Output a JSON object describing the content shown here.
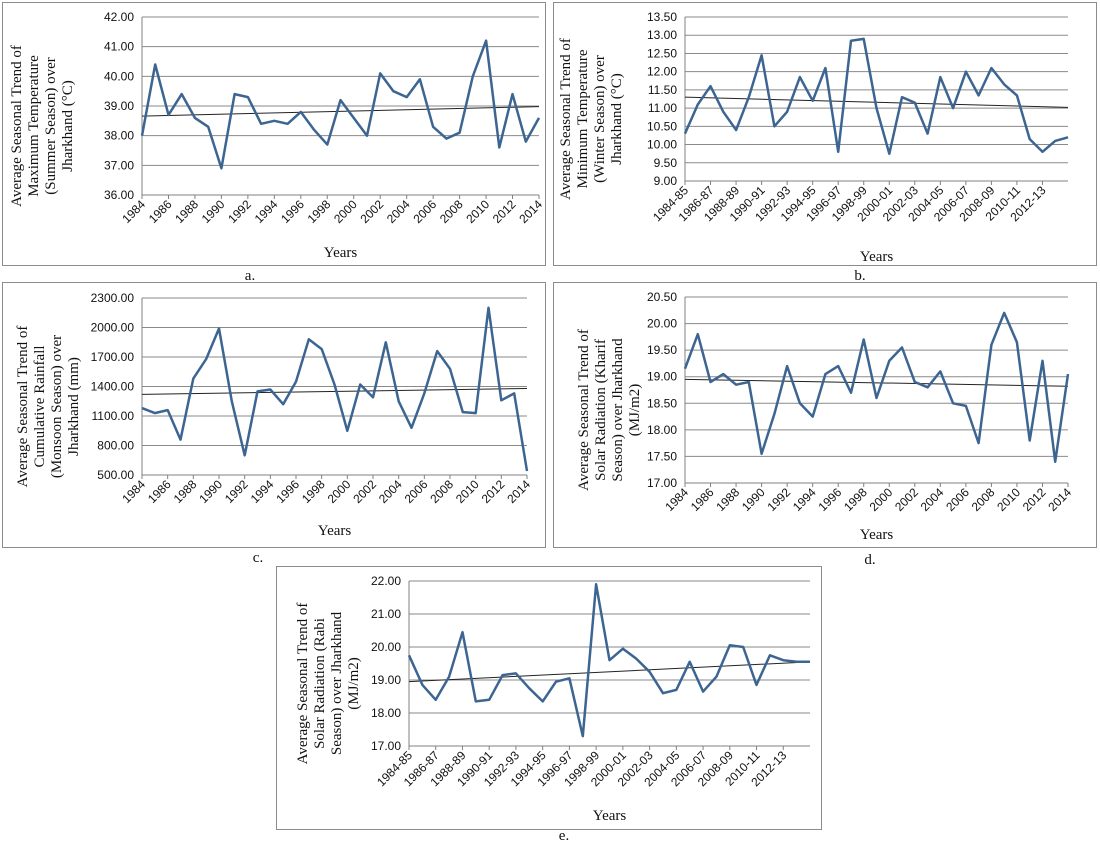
{
  "chart_data": [
    {
      "type": "line",
      "ylabel": [
        "Average Seasonal Trend of",
        "Maximum Temperature",
        "(Summer Season) over",
        "Jharkhand (°C)"
      ],
      "xlabel": "Years",
      "caption": "a.",
      "ylim": [
        36,
        42
      ],
      "yticks": [
        "36.00",
        "37.00",
        "38.00",
        "39.00",
        "40.00",
        "41.00",
        "42.00"
      ],
      "xtick_labels": [
        "1984",
        "1986",
        "1988",
        "1990",
        "1992",
        "1994",
        "1996",
        "1998",
        "2000",
        "2002",
        "2004",
        "2006",
        "2008",
        "2010",
        "2012",
        "2014"
      ],
      "x": [
        "1984",
        "1985",
        "1986",
        "1987",
        "1988",
        "1989",
        "1990",
        "1991",
        "1992",
        "1993",
        "1994",
        "1995",
        "1996",
        "1997",
        "1998",
        "1999",
        "2000",
        "2001",
        "2002",
        "2003",
        "2004",
        "2005",
        "2006",
        "2007",
        "2008",
        "2009",
        "2010",
        "2011",
        "2012",
        "2013",
        "2014"
      ],
      "values": [
        38.0,
        40.4,
        38.7,
        39.4,
        38.6,
        38.3,
        36.9,
        39.4,
        39.3,
        38.4,
        38.5,
        38.4,
        38.8,
        38.2,
        37.7,
        39.2,
        38.6,
        38.0,
        40.1,
        39.5,
        39.3,
        39.9,
        38.3,
        37.9,
        38.1,
        40.0,
        41.2,
        37.6,
        39.4,
        37.8,
        38.6
      ],
      "trend": [
        38.66,
        38.98
      ],
      "grid": true,
      "line_color": "#3c6592"
    },
    {
      "type": "line",
      "ylabel": [
        "Average Seasonal Trend of",
        "Minimum Temperature",
        "(Winter Season) over",
        "Jharkhand (°C)"
      ],
      "xlabel": "Years",
      "caption": "b.",
      "ylim": [
        9,
        13.5
      ],
      "yticks": [
        "9.00",
        "9.50",
        "10.00",
        "10.50",
        "11.00",
        "11.50",
        "12.00",
        "12.50",
        "13.00",
        "13.50"
      ],
      "xtick_labels": [
        "1984-85",
        "1986-87",
        "1988-89",
        "1990-91",
        "1992-93",
        "1994-95",
        "1996-97",
        "1998-99",
        "2000-01",
        "2002-03",
        "2004-05",
        "2006-07",
        "2008-09",
        "2010-11",
        "2012-13"
      ],
      "x": [
        "1984-85",
        "1985-86",
        "1986-87",
        "1987-88",
        "1988-89",
        "1989-90",
        "1990-91",
        "1991-92",
        "1992-93",
        "1993-94",
        "1994-95",
        "1995-96",
        "1996-97",
        "1997-98",
        "1998-99",
        "1999-00",
        "2000-01",
        "2001-02",
        "2002-03",
        "2003-04",
        "2004-05",
        "2005-06",
        "2006-07",
        "2007-08",
        "2008-09",
        "2009-10",
        "2010-11",
        "2011-12",
        "2012-13",
        "2013-14",
        "2014-15"
      ],
      "values": [
        10.3,
        11.1,
        11.6,
        10.9,
        10.4,
        11.3,
        12.45,
        10.5,
        10.9,
        11.85,
        11.2,
        12.1,
        9.8,
        12.85,
        12.9,
        11.0,
        9.75,
        11.3,
        11.15,
        10.3,
        11.85,
        11.0,
        12.0,
        11.35,
        12.1,
        11.65,
        11.35,
        10.15,
        9.8,
        10.1,
        10.2
      ],
      "trend": [
        11.3,
        11.02
      ],
      "grid": true,
      "line_color": "#3c6592"
    },
    {
      "type": "line",
      "ylabel": [
        "Average Seasonal Trend of",
        "Cumulative Rainfall",
        "(Monsoon Season) over",
        "Jharkhand (mm)"
      ],
      "xlabel": "Years",
      "caption": "c.",
      "ylim": [
        500,
        2300
      ],
      "yticks": [
        "500.00",
        "800.00",
        "1100.00",
        "1400.00",
        "1700.00",
        "2000.00",
        "2300.00"
      ],
      "xtick_labels": [
        "1984",
        "1986",
        "1988",
        "1990",
        "1992",
        "1994",
        "1996",
        "1998",
        "2000",
        "2002",
        "2004",
        "2006",
        "2008",
        "2010",
        "2012",
        "2014"
      ],
      "x": [
        "1984",
        "1985",
        "1986",
        "1987",
        "1988",
        "1989",
        "1990",
        "1991",
        "1992",
        "1993",
        "1994",
        "1995",
        "1996",
        "1997",
        "1998",
        "1999",
        "2000",
        "2001",
        "2002",
        "2003",
        "2004",
        "2005",
        "2006",
        "2007",
        "2008",
        "2009",
        "2010",
        "2011",
        "2012",
        "2013",
        "2014"
      ],
      "values": [
        1180,
        1130,
        1160,
        860,
        1480,
        1680,
        1990,
        1250,
        700,
        1350,
        1370,
        1220,
        1450,
        1880,
        1780,
        1420,
        950,
        1420,
        1290,
        1850,
        1250,
        980,
        1330,
        1760,
        1580,
        1140,
        1130,
        2200,
        1260,
        1330,
        540
      ],
      "trend": [
        1320,
        1380
      ],
      "grid": true,
      "line_color": "#3c6592"
    },
    {
      "type": "line",
      "ylabel": [
        "Average Seasonal Trend of",
        "Solar Radiation (Kharif",
        "Season) over Jharkhand",
        "(MJ/m2)"
      ],
      "xlabel": "Years",
      "caption": "d.",
      "ylim": [
        17,
        20.5
      ],
      "yticks": [
        "17.00",
        "17.50",
        "18.00",
        "18.50",
        "19.00",
        "19.50",
        "20.00",
        "20.50"
      ],
      "xtick_labels": [
        "1984",
        "1986",
        "1988",
        "1990",
        "1992",
        "1994",
        "1996",
        "1998",
        "2000",
        "2002",
        "2004",
        "2006",
        "2008",
        "2010",
        "2012",
        "2014"
      ],
      "x": [
        "1984",
        "1985",
        "1986",
        "1987",
        "1988",
        "1989",
        "1990",
        "1991",
        "1992",
        "1993",
        "1994",
        "1995",
        "1996",
        "1997",
        "1998",
        "1999",
        "2000",
        "2001",
        "2002",
        "2003",
        "2004",
        "2005",
        "2006",
        "2007",
        "2008",
        "2009",
        "2010",
        "2011",
        "2012",
        "2013",
        "2014"
      ],
      "values": [
        19.15,
        19.8,
        18.9,
        19.05,
        18.85,
        18.9,
        17.55,
        18.3,
        19.2,
        18.5,
        18.25,
        19.05,
        19.2,
        18.7,
        19.7,
        18.6,
        19.3,
        19.55,
        18.9,
        18.8,
        19.1,
        18.5,
        18.45,
        17.75,
        19.6,
        20.2,
        19.65,
        17.8,
        19.3,
        17.4,
        19.05
      ],
      "trend": [
        18.95,
        18.82
      ],
      "grid": true,
      "line_color": "#3c6592"
    },
    {
      "type": "line",
      "ylabel": [
        "Average Seasonal Trend of",
        "Solar Radiation (Rabi",
        "Season) over Jharkhand",
        "(MJ/m2)"
      ],
      "xlabel": "Years",
      "caption": "e.",
      "ylim": [
        17,
        22
      ],
      "yticks": [
        "17.00",
        "18.00",
        "19.00",
        "20.00",
        "21.00",
        "22.00"
      ],
      "xtick_labels": [
        "1984-85",
        "1986-87",
        "1988-89",
        "1990-91",
        "1992-93",
        "1994-95",
        "1996-97",
        "1998-99",
        "2000-01",
        "2002-03",
        "2004-05",
        "2006-07",
        "2008-09",
        "2010-11",
        "2012-13"
      ],
      "x": [
        "1984-85",
        "1985-86",
        "1986-87",
        "1987-88",
        "1988-89",
        "1989-90",
        "1990-91",
        "1991-92",
        "1992-93",
        "1993-94",
        "1994-95",
        "1995-96",
        "1996-97",
        "1997-98",
        "1998-99",
        "1999-00",
        "2000-01",
        "2001-02",
        "2002-03",
        "2003-04",
        "2004-05",
        "2005-06",
        "2006-07",
        "2007-08",
        "2008-09",
        "2009-10",
        "2010-11",
        "2011-12",
        "2012-13",
        "2013-14",
        "2014-15"
      ],
      "values": [
        19.75,
        18.85,
        18.4,
        19.1,
        20.45,
        18.35,
        18.4,
        19.15,
        19.2,
        18.75,
        18.35,
        18.95,
        19.05,
        17.3,
        21.9,
        19.6,
        19.95,
        19.65,
        19.25,
        18.6,
        18.7,
        19.55,
        18.65,
        19.1,
        20.05,
        20.0,
        18.85,
        19.75,
        19.6,
        19.55,
        19.55
      ],
      "trend": [
        18.95,
        19.55
      ],
      "grid": true,
      "line_color": "#3c6592"
    }
  ]
}
